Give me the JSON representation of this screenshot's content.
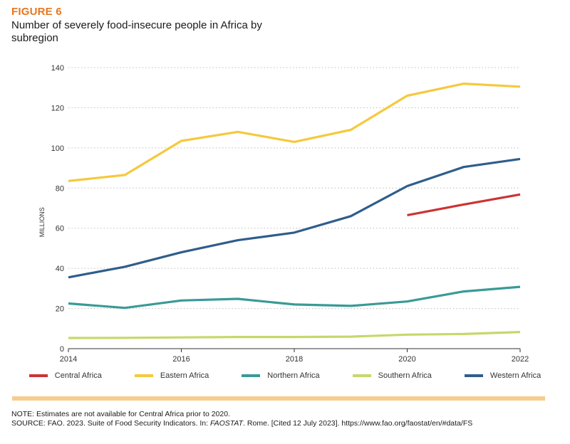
{
  "figure_label": "FIGURE 6",
  "figure_title": "Number of severely food-insecure people in Africa by subregion",
  "chart_data": {
    "type": "line",
    "title": "Number of severely food-insecure people in Africa by subregion",
    "xlabel": "",
    "ylabel": "MILLIONS",
    "x": [
      2014,
      2015,
      2016,
      2017,
      2018,
      2019,
      2020,
      2021,
      2022
    ],
    "xlim": [
      2014,
      2022
    ],
    "ylim": [
      0,
      140
    ],
    "x_ticks": [
      "2014",
      "2016",
      "2018",
      "2020",
      "2022"
    ],
    "y_ticks": [
      "0",
      "20",
      "40",
      "60",
      "80",
      "100",
      "120",
      "140"
    ],
    "grid": "horizontal dotted",
    "legend_position": "bottom",
    "series": [
      {
        "name": "Central Africa",
        "color": "#cc3333",
        "values": [
          null,
          null,
          null,
          null,
          null,
          null,
          66.5,
          71.8,
          76.8
        ]
      },
      {
        "name": "Eastern Africa",
        "color": "#f5c93e",
        "values": [
          83.5,
          86.5,
          103.5,
          108.0,
          103.0,
          109.0,
          126.0,
          132.0,
          130.5
        ]
      },
      {
        "name": "Northern Africa",
        "color": "#3a9a96",
        "values": [
          22.5,
          20.3,
          24.0,
          24.8,
          22.0,
          21.3,
          23.5,
          28.5,
          30.8
        ]
      },
      {
        "name": "Southern Africa",
        "color": "#c6d86b",
        "values": [
          5.3,
          5.4,
          5.6,
          5.8,
          5.8,
          6.0,
          7.0,
          7.3,
          8.3
        ]
      },
      {
        "name": "Western Africa",
        "color": "#2f5d8c",
        "values": [
          35.5,
          40.8,
          48.0,
          54.0,
          57.8,
          66.0,
          81.0,
          90.5,
          94.5
        ]
      }
    ]
  },
  "notes": {
    "note": "NOTE: Estimates are not available for Central Africa prior to 2020.",
    "source_prefix": "SOURCE: FAO. 2023. Suite of Food Security Indicators. In: ",
    "source_italic": "FAOSTAT",
    "source_suffix": ". Rome. [Cited 12 July 2023]. https://www.fao.org/faostat/en/#data/FS"
  }
}
